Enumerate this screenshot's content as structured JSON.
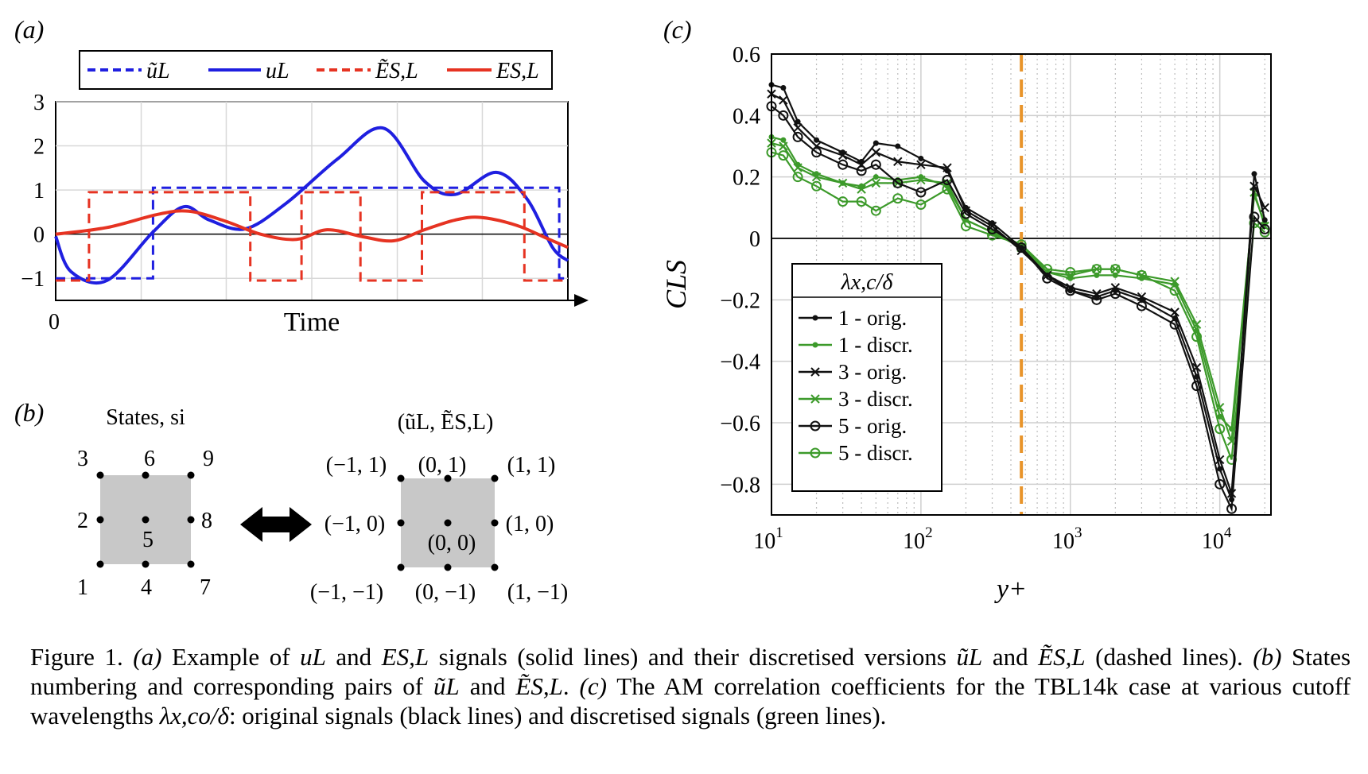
{
  "panels": {
    "a": {
      "label": "(a)",
      "legend": [
        "ũL",
        "uL",
        "ẼS,L",
        "ES,L"
      ],
      "yticks": [
        "3",
        "2",
        "1",
        "0",
        "−1"
      ],
      "xtick0": "0",
      "xlabel": "Time"
    },
    "b": {
      "label": "(b)",
      "states_title": "States, si",
      "pairs_title": "(ũL, ẼS,L)",
      "state_numbers": [
        "1",
        "2",
        "3",
        "4",
        "5",
        "6",
        "7",
        "8",
        "9"
      ],
      "pairs": [
        "(−1, −1)",
        "(−1, 0)",
        "(−1, 1)",
        "(0, −1)",
        "(0, 0)",
        "(0, 1)",
        "(1, −1)",
        "(1, 0)",
        "(1, 1)"
      ]
    },
    "c": {
      "label": "(c)",
      "ylabel": "CLS",
      "xlabel": "y+",
      "legend_title": "λx,c/δ",
      "vline_x": 470
    }
  },
  "chart_data": [
    {
      "type": "line",
      "xlim": [
        0,
        1
      ],
      "ylim": [
        -1.5,
        3
      ],
      "series": [
        {
          "name": "ũL",
          "color": "#1f1fe0",
          "dashed": true,
          "x": [
            0,
            0.19,
            0.19,
            0.983,
            0.983,
            1.0
          ],
          "values": [
            -1,
            -1,
            1.05,
            1.05,
            -1,
            -1
          ]
        },
        {
          "name": "uL",
          "color": "#1f1fe0",
          "dashed": false,
          "x": [
            0,
            0.03,
            0.1,
            0.19,
            0.25,
            0.3,
            0.37,
            0.45,
            0.55,
            0.64,
            0.72,
            0.78,
            0.86,
            0.92,
            0.97,
            1.0
          ],
          "values": [
            -0.05,
            -0.85,
            -1.05,
            0.05,
            0.62,
            0.32,
            0.12,
            0.7,
            1.7,
            2.4,
            1.2,
            0.9,
            1.4,
            0.8,
            -0.3,
            -0.6
          ]
        },
        {
          "name": "ẼS,L",
          "color": "#e63322",
          "dashed": true,
          "x": [
            0,
            0.065,
            0.065,
            0.38,
            0.38,
            0.48,
            0.48,
            0.595,
            0.595,
            0.715,
            0.715,
            0.915,
            0.915,
            1.0
          ],
          "values": [
            -1.05,
            -1.05,
            0.95,
            0.95,
            -1.05,
            -1.05,
            0.95,
            0.95,
            -1.05,
            -1.05,
            0.95,
            0.95,
            -1.05,
            -1.05
          ]
        },
        {
          "name": "ES,L",
          "color": "#e63322",
          "dashed": false,
          "x": [
            0,
            0.1,
            0.2,
            0.26,
            0.33,
            0.4,
            0.47,
            0.53,
            0.6,
            0.66,
            0.72,
            0.78,
            0.83,
            0.9,
            0.96,
            1.0
          ],
          "values": [
            0,
            0.15,
            0.45,
            0.52,
            0.3,
            0.0,
            -0.12,
            0.1,
            -0.06,
            -0.15,
            0.1,
            0.32,
            0.38,
            0.2,
            -0.1,
            -0.3
          ]
        }
      ]
    },
    {
      "type": "line",
      "xscale": "log",
      "xlim": [
        10,
        22000
      ],
      "ylim": [
        -0.9,
        0.6
      ],
      "yticks": [
        -0.8,
        -0.6,
        -0.4,
        -0.2,
        0,
        0.2,
        0.4,
        0.6
      ],
      "ytick_labels": [
        "−0.8",
        "−0.6",
        "−0.4",
        "−0.2",
        "0",
        "0.2",
        "0.4",
        "0.6"
      ],
      "xticks": [
        10,
        100,
        1000,
        10000
      ],
      "xtick_labels": [
        [
          "10",
          "1"
        ],
        [
          "10",
          "2"
        ],
        [
          "10",
          "3"
        ],
        [
          "10",
          "4"
        ]
      ],
      "grid": true,
      "legend_position": "bottom-left",
      "series": [
        {
          "name": "1 - orig.",
          "color": "#111111",
          "marker": "dot",
          "x": [
            10,
            12,
            15,
            20,
            30,
            40,
            50,
            70,
            100,
            150,
            200,
            300,
            470,
            700,
            1000,
            1500,
            2000,
            3000,
            5000,
            7000,
            10000,
            12000,
            17000,
            20000
          ],
          "values": [
            0.5,
            0.49,
            0.38,
            0.32,
            0.28,
            0.25,
            0.31,
            0.3,
            0.26,
            0.22,
            0.1,
            0.05,
            -0.03,
            -0.12,
            -0.17,
            -0.19,
            -0.17,
            -0.2,
            -0.26,
            -0.45,
            -0.75,
            -0.85,
            0.21,
            0.06
          ]
        },
        {
          "name": "1 - discr.",
          "color": "#3c9a2a",
          "marker": "dot",
          "x": [
            10,
            12,
            15,
            20,
            30,
            40,
            50,
            70,
            100,
            150,
            200,
            300,
            470,
            700,
            1000,
            1500,
            2000,
            3000,
            5000,
            7000,
            10000,
            12000,
            17000,
            20000
          ],
          "values": [
            0.33,
            0.32,
            0.24,
            0.21,
            0.18,
            0.17,
            0.2,
            0.19,
            0.2,
            0.17,
            0.06,
            0.02,
            -0.02,
            -0.11,
            -0.13,
            -0.12,
            -0.12,
            -0.13,
            -0.15,
            -0.3,
            -0.58,
            -0.62,
            0.14,
            0.05
          ]
        },
        {
          "name": "3 - orig.",
          "color": "#111111",
          "marker": "cross",
          "x": [
            10,
            12,
            15,
            20,
            30,
            40,
            50,
            70,
            100,
            150,
            200,
            300,
            470,
            700,
            1000,
            1500,
            2000,
            3000,
            5000,
            7000,
            10000,
            12000,
            17000,
            20000
          ],
          "values": [
            0.47,
            0.45,
            0.36,
            0.3,
            0.27,
            0.24,
            0.28,
            0.25,
            0.24,
            0.23,
            0.09,
            0.04,
            -0.04,
            -0.12,
            -0.16,
            -0.18,
            -0.16,
            -0.19,
            -0.24,
            -0.42,
            -0.72,
            -0.83,
            0.17,
            0.1
          ]
        },
        {
          "name": "3 - discr.",
          "color": "#3c9a2a",
          "marker": "cross",
          "x": [
            10,
            12,
            15,
            20,
            30,
            40,
            50,
            70,
            100,
            150,
            200,
            300,
            470,
            700,
            1000,
            1500,
            2000,
            3000,
            5000,
            7000,
            10000,
            12000,
            17000,
            20000
          ],
          "values": [
            0.31,
            0.3,
            0.23,
            0.2,
            0.18,
            0.16,
            0.18,
            0.18,
            0.19,
            0.18,
            0.06,
            0.02,
            -0.03,
            -0.11,
            -0.12,
            -0.1,
            -0.1,
            -0.12,
            -0.14,
            -0.28,
            -0.55,
            -0.66,
            0.15,
            0.04
          ]
        },
        {
          "name": "5 - orig.",
          "color": "#111111",
          "marker": "circle",
          "x": [
            10,
            12,
            15,
            20,
            30,
            40,
            50,
            70,
            100,
            150,
            200,
            300,
            470,
            700,
            1000,
            1500,
            2000,
            3000,
            5000,
            7000,
            10000,
            12000,
            17000,
            20000
          ],
          "values": [
            0.43,
            0.4,
            0.33,
            0.28,
            0.24,
            0.22,
            0.24,
            0.18,
            0.15,
            0.19,
            0.08,
            0.03,
            -0.03,
            -0.13,
            -0.17,
            -0.2,
            -0.18,
            -0.22,
            -0.28,
            -0.48,
            -0.8,
            -0.88,
            0.07,
            0.03
          ]
        },
        {
          "name": "5 - discr.",
          "color": "#3c9a2a",
          "marker": "circle",
          "x": [
            10,
            12,
            15,
            20,
            30,
            40,
            50,
            70,
            100,
            150,
            200,
            300,
            470,
            700,
            1000,
            1500,
            2000,
            3000,
            5000,
            7000,
            10000,
            12000,
            17000,
            20000
          ],
          "values": [
            0.28,
            0.27,
            0.2,
            0.17,
            0.12,
            0.12,
            0.09,
            0.13,
            0.11,
            0.16,
            0.04,
            0.01,
            -0.02,
            -0.1,
            -0.11,
            -0.1,
            -0.1,
            -0.12,
            -0.17,
            -0.32,
            -0.62,
            -0.72,
            0.05,
            0.02
          ]
        }
      ]
    }
  ],
  "caption": {
    "fig_label": "Figure 1.",
    "parts": [
      "(a)",
      " Example of ",
      "uL",
      " and ",
      "ES,L",
      " signals (solid lines) and their discretised versions ",
      "ũL",
      " and ",
      "ẼS,L",
      " (dashed lines). ",
      "(b)",
      " States numbering and corresponding pairs of ",
      "ũL",
      " and ",
      "ẼS,L",
      ". ",
      "(c)",
      " The AM correlation coefficients for the TBL14k case at various cutoff wavelengths ",
      "λx,co/δ",
      ": original signals (black lines) and discretised signals (green lines)."
    ]
  }
}
